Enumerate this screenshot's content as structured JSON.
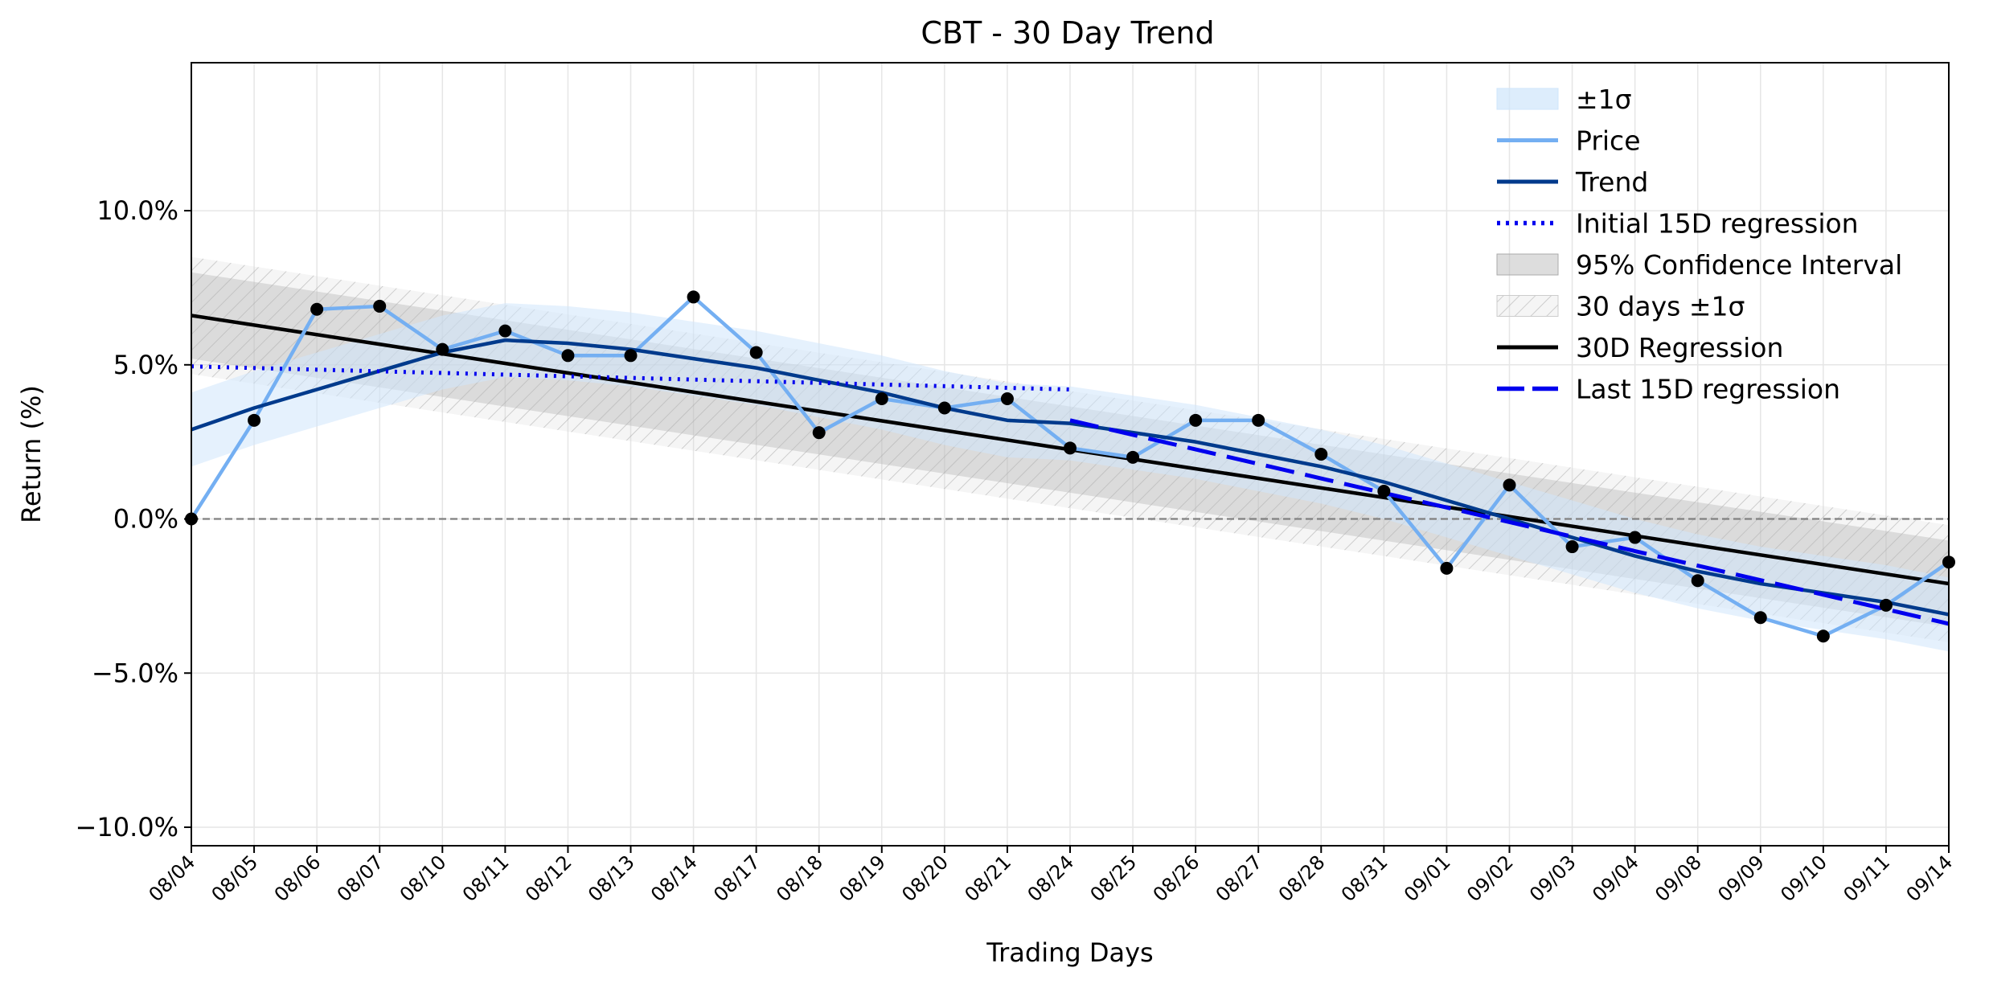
{
  "chart_data": {
    "type": "line",
    "title": "CBT - 30 Day Trend",
    "xlabel": "Trading Days",
    "ylabel": "Return (%)",
    "categories": [
      "08/04",
      "08/05",
      "08/06",
      "08/07",
      "08/10",
      "08/11",
      "08/12",
      "08/13",
      "08/14",
      "08/17",
      "08/18",
      "08/19",
      "08/20",
      "08/21",
      "08/24",
      "08/25",
      "08/26",
      "08/27",
      "08/28",
      "08/31",
      "09/01",
      "09/02",
      "09/03",
      "09/04",
      "09/08",
      "09/09",
      "09/10",
      "09/11",
      "09/14"
    ],
    "ylim": [
      -10.6,
      14.8
    ],
    "yticks": [
      -10,
      -5,
      0,
      5,
      10
    ],
    "ytick_labels": [
      "−10.0%",
      "−5.0%",
      "0.0%",
      "5.0%",
      "10.0%"
    ],
    "grid": true,
    "legend_position": "top-right",
    "series": [
      {
        "name": "Price",
        "color": "#74aff2",
        "values": [
          0.0,
          3.2,
          6.8,
          6.9,
          5.5,
          6.1,
          5.3,
          5.3,
          7.2,
          5.4,
          2.8,
          3.9,
          3.6,
          3.9,
          2.3,
          2.0,
          3.2,
          3.2,
          2.1,
          0.9,
          -1.6,
          1.1,
          -0.9,
          -0.6,
          -2.0,
          -3.2,
          -3.8,
          -2.8,
          -1.4
        ]
      },
      {
        "name": "Trend",
        "color": "#003a8c",
        "values": [
          2.9,
          3.6,
          4.2,
          4.8,
          5.4,
          5.8,
          5.7,
          5.5,
          5.2,
          4.9,
          4.5,
          4.1,
          3.6,
          3.2,
          3.1,
          2.8,
          2.5,
          2.1,
          1.7,
          1.2,
          0.6,
          0.0,
          -0.6,
          -1.2,
          -1.7,
          -2.1,
          -2.4,
          -2.7,
          -3.1
        ]
      },
      {
        "name": "Initial 15D regression",
        "color": "#0000ee",
        "x_range": [
          0,
          14
        ],
        "y_range": [
          4.95,
          4.2
        ]
      },
      {
        "name": "Last 15D regression",
        "color": "#0000ee",
        "x_range": [
          14,
          28
        ],
        "y_range": [
          3.2,
          -3.4
        ]
      },
      {
        "name": "30D Regression",
        "color": "#000000",
        "x_range": [
          0,
          28
        ],
        "y_range": [
          6.6,
          -2.1
        ]
      }
    ],
    "bands": [
      {
        "name": "±1σ",
        "color": "#cfe5fb",
        "center": "Trend",
        "half_width": 1.2
      },
      {
        "name": "95% Confidence Interval",
        "color": "#b4b4b4",
        "center": "30D Regression",
        "half_width": 1.4
      },
      {
        "name": "30 days ±1σ",
        "color": "#c8c8c8",
        "center": "30D Regression",
        "half_width": 1.9
      }
    ],
    "markers": {
      "series": "Price",
      "color": "#000000"
    },
    "reference_line": {
      "y": 0,
      "color": "#808080",
      "style": "dashed"
    },
    "legend": [
      {
        "label": "±1σ",
        "kind": "band-blue"
      },
      {
        "label": "Price",
        "kind": "line-price"
      },
      {
        "label": "Trend",
        "kind": "line-trend"
      },
      {
        "label": "Initial 15D regression",
        "kind": "line-dotted"
      },
      {
        "label": "95% Confidence Interval",
        "kind": "band-gray"
      },
      {
        "label": "30 days ±1σ",
        "kind": "band-hatch"
      },
      {
        "label": "30D Regression",
        "kind": "line-black"
      },
      {
        "label": "Last 15D regression",
        "kind": "line-dashed"
      }
    ]
  }
}
